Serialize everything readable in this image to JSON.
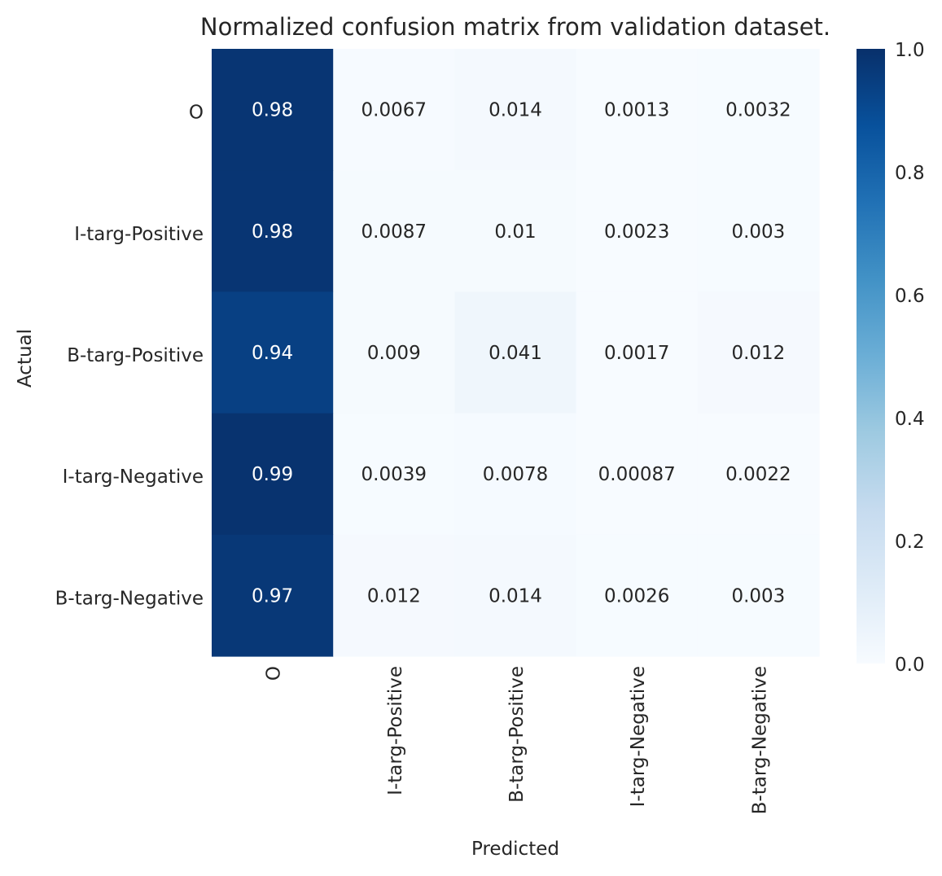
{
  "chart_data": {
    "type": "heatmap",
    "title": "Normalized confusion matrix from validation dataset.",
    "xlabel": "Predicted",
    "ylabel": "Actual",
    "x_categories": [
      "O",
      "I-targ-Positive",
      "B-targ-Positive",
      "I-targ-Negative",
      "B-targ-Negative"
    ],
    "y_categories": [
      "O",
      "I-targ-Positive",
      "B-targ-Positive",
      "I-targ-Negative",
      "B-targ-Negative"
    ],
    "values": [
      [
        0.98,
        0.0067,
        0.014,
        0.0013,
        0.0032
      ],
      [
        0.98,
        0.0087,
        0.01,
        0.0023,
        0.003
      ],
      [
        0.94,
        0.009,
        0.041,
        0.0017,
        0.012
      ],
      [
        0.99,
        0.0039,
        0.0078,
        0.00087,
        0.0022
      ],
      [
        0.97,
        0.012,
        0.014,
        0.0026,
        0.003
      ]
    ],
    "cell_labels": [
      [
        "0.98",
        "0.0067",
        "0.014",
        "0.0013",
        "0.0032"
      ],
      [
        "0.98",
        "0.0087",
        "0.01",
        "0.0023",
        "0.003"
      ],
      [
        "0.94",
        "0.009",
        "0.041",
        "0.0017",
        "0.012"
      ],
      [
        "0.99",
        "0.0039",
        "0.0078",
        "0.00087",
        "0.0022"
      ],
      [
        "0.97",
        "0.012",
        "0.014",
        "0.0026",
        "0.003"
      ]
    ],
    "colormap": "Blues",
    "colorbar": {
      "range": [
        0.0,
        1.0
      ],
      "ticks": [
        0.0,
        0.2,
        0.4,
        0.6,
        0.8,
        1.0
      ],
      "tick_labels": [
        "0.0",
        "0.2",
        "0.4",
        "0.6",
        "0.8",
        "1.0"
      ]
    },
    "colors": {
      "light_text": "#ffffff",
      "dark_text": "#262626",
      "axis_text": "#262626"
    }
  }
}
